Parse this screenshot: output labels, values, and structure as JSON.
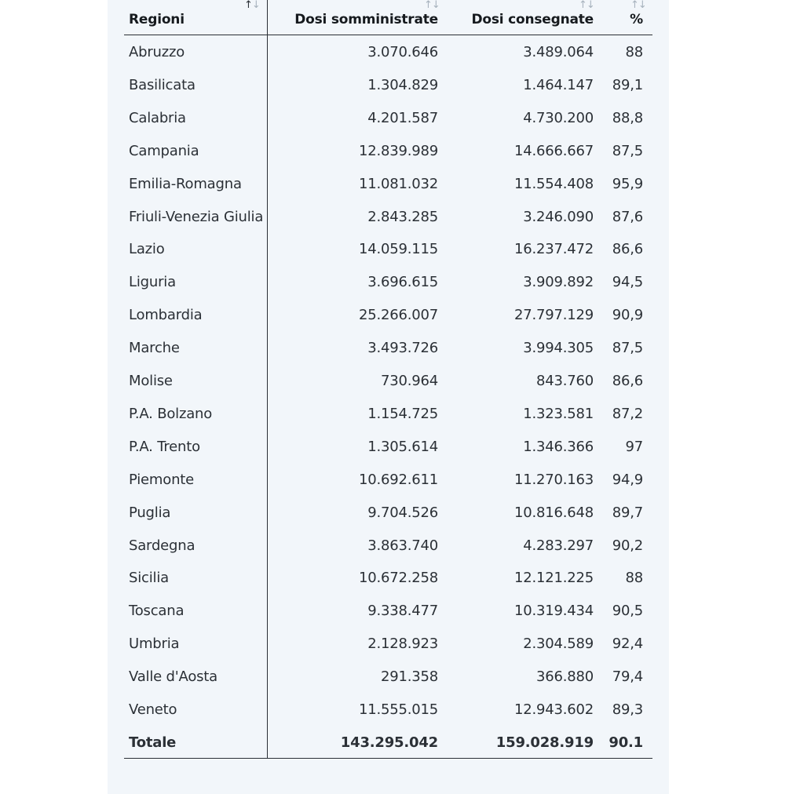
{
  "table": {
    "headers": {
      "region": "Regioni",
      "administered": "Dosi somministrate",
      "delivered": "Dosi consegnate",
      "percent": "%"
    },
    "sort_icon": "↑↓",
    "rows": [
      {
        "region": "Abruzzo",
        "administered": "3.070.646",
        "delivered": "3.489.064",
        "percent": "88"
      },
      {
        "region": "Basilicata",
        "administered": "1.304.829",
        "delivered": "1.464.147",
        "percent": "89,1"
      },
      {
        "region": "Calabria",
        "administered": "4.201.587",
        "delivered": "4.730.200",
        "percent": "88,8"
      },
      {
        "region": "Campania",
        "administered": "12.839.989",
        "delivered": "14.666.667",
        "percent": "87,5"
      },
      {
        "region": "Emilia-Romagna",
        "administered": "11.081.032",
        "delivered": "11.554.408",
        "percent": "95,9"
      },
      {
        "region": "Friuli-Venezia Giulia",
        "administered": "2.843.285",
        "delivered": "3.246.090",
        "percent": "87,6"
      },
      {
        "region": "Lazio",
        "administered": "14.059.115",
        "delivered": "16.237.472",
        "percent": "86,6"
      },
      {
        "region": "Liguria",
        "administered": "3.696.615",
        "delivered": "3.909.892",
        "percent": "94,5"
      },
      {
        "region": "Lombardia",
        "administered": "25.266.007",
        "delivered": "27.797.129",
        "percent": "90,9"
      },
      {
        "region": "Marche",
        "administered": "3.493.726",
        "delivered": "3.994.305",
        "percent": "87,5"
      },
      {
        "region": "Molise",
        "administered": "730.964",
        "delivered": "843.760",
        "percent": "86,6"
      },
      {
        "region": "P.A. Bolzano",
        "administered": "1.154.725",
        "delivered": "1.323.581",
        "percent": "87,2"
      },
      {
        "region": "P.A. Trento",
        "administered": "1.305.614",
        "delivered": "1.346.366",
        "percent": "97"
      },
      {
        "region": "Piemonte",
        "administered": "10.692.611",
        "delivered": "11.270.163",
        "percent": "94,9"
      },
      {
        "region": "Puglia",
        "administered": "9.704.526",
        "delivered": "10.816.648",
        "percent": "89,7"
      },
      {
        "region": "Sardegna",
        "administered": "3.863.740",
        "delivered": "4.283.297",
        "percent": "90,2"
      },
      {
        "region": "Sicilia",
        "administered": "10.672.258",
        "delivered": "12.121.225",
        "percent": "88"
      },
      {
        "region": "Toscana",
        "administered": "9.338.477",
        "delivered": "10.319.434",
        "percent": "90,5"
      },
      {
        "region": "Umbria",
        "administered": "2.128.923",
        "delivered": "2.304.589",
        "percent": "92,4"
      },
      {
        "region": "Valle d'Aosta",
        "administered": "291.358",
        "delivered": "366.880",
        "percent": "79,4"
      },
      {
        "region": "Veneto",
        "administered": "11.555.015",
        "delivered": "12.943.602",
        "percent": "89,3"
      }
    ],
    "total": {
      "region": "Totale",
      "administered": "143.295.042",
      "delivered": "159.028.919",
      "percent": "90.1"
    }
  }
}
